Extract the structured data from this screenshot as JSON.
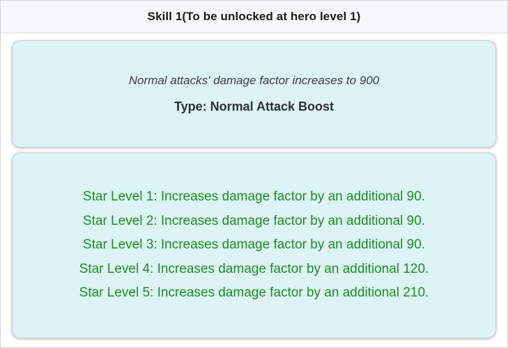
{
  "header": {
    "title": "Skill 1(To be unlocked at hero level 1)"
  },
  "summary": {
    "description": "Normal attacks' damage factor increases to 900",
    "type_line": "Type: Normal Attack Boost"
  },
  "star_levels": {
    "lines": [
      "Star Level 1: Increases damage factor by an additional 90.",
      "Star Level 2: Increases damage factor by an additional 90.",
      "Star Level 3: Increases damage factor by an additional 90.",
      "Star Level 4: Increases damage factor by an additional 120.",
      "Star Level 5: Increases damage factor by an additional 210."
    ]
  },
  "colors": {
    "card_background": "#ddf3f6",
    "card_border": "#c9d3d4",
    "star_level_text": "#1e8e1e",
    "header_background": "#f7f8f9",
    "title_text": "#1b1b1b"
  }
}
